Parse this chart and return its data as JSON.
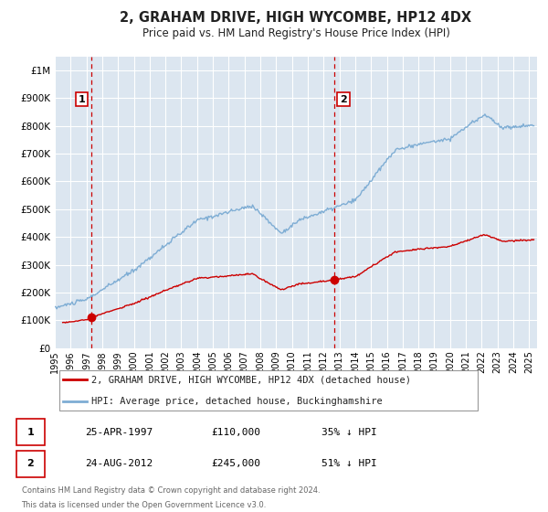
{
  "title": "2, GRAHAM DRIVE, HIGH WYCOMBE, HP12 4DX",
  "subtitle": "Price paid vs. HM Land Registry's House Price Index (HPI)",
  "title_fontsize": 10.5,
  "subtitle_fontsize": 8.5,
  "background_color": "#ffffff",
  "plot_bg_color": "#dce6f0",
  "grid_color": "#ffffff",
  "xlim": [
    1995.0,
    2025.5
  ],
  "ylim": [
    0,
    1050000
  ],
  "yticks": [
    0,
    100000,
    200000,
    300000,
    400000,
    500000,
    600000,
    700000,
    800000,
    900000,
    1000000
  ],
  "ytick_labels": [
    "£0",
    "£100K",
    "£200K",
    "£300K",
    "£400K",
    "£500K",
    "£600K",
    "£700K",
    "£800K",
    "£900K",
    "£1M"
  ],
  "xticks": [
    1995,
    1996,
    1997,
    1998,
    1999,
    2000,
    2001,
    2002,
    2003,
    2004,
    2005,
    2006,
    2007,
    2008,
    2009,
    2010,
    2011,
    2012,
    2013,
    2014,
    2015,
    2016,
    2017,
    2018,
    2019,
    2020,
    2021,
    2022,
    2023,
    2024,
    2025
  ],
  "sale1_x": 1997.31,
  "sale1_y": 110000,
  "sale1_label": "1",
  "sale1_date": "25-APR-1997",
  "sale1_price": "£110,000",
  "sale1_hpi": "35% ↓ HPI",
  "sale2_x": 2012.65,
  "sale2_y": 245000,
  "sale2_label": "2",
  "sale2_date": "24-AUG-2012",
  "sale2_price": "£245,000",
  "sale2_hpi": "51% ↓ HPI",
  "sale_color": "#cc0000",
  "hpi_color": "#7eadd4",
  "legend_label1": "2, GRAHAM DRIVE, HIGH WYCOMBE, HP12 4DX (detached house)",
  "legend_label2": "HPI: Average price, detached house, Buckinghamshire",
  "footer1": "Contains HM Land Registry data © Crown copyright and database right 2024.",
  "footer2": "This data is licensed under the Open Government Licence v3.0.",
  "label_box_color": "#ffffff",
  "label_box_edge": "#cc0000"
}
